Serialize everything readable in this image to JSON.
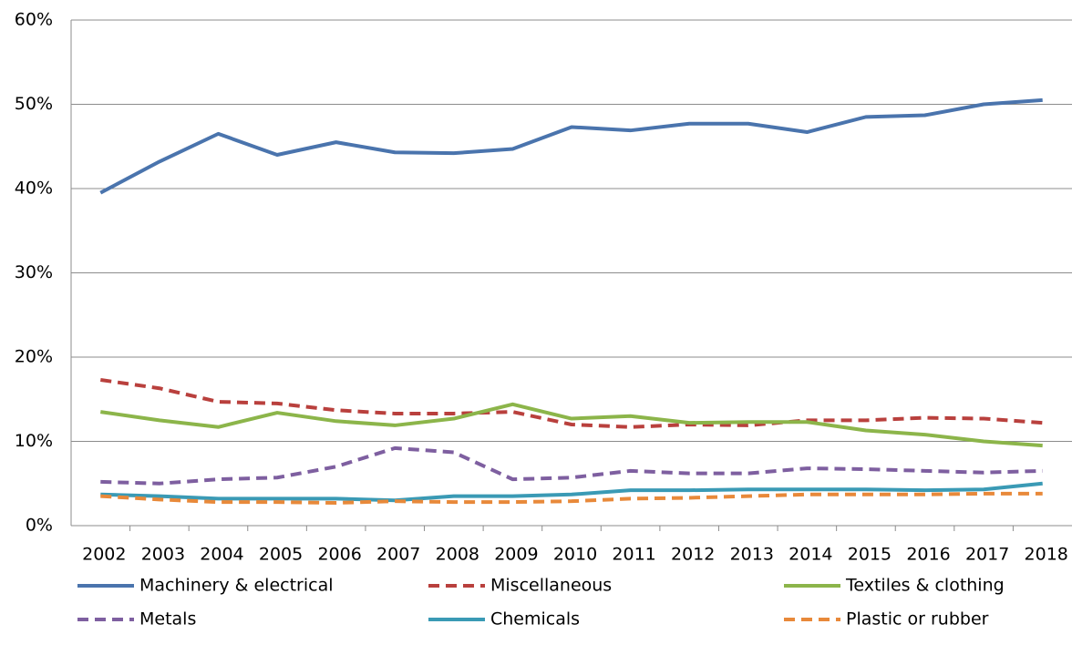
{
  "chart_data": {
    "type": "line",
    "categories": [
      "2002",
      "2003",
      "2004",
      "2005",
      "2006",
      "2007",
      "2008",
      "2009",
      "2010",
      "2011",
      "2012",
      "2013",
      "2014",
      "2015",
      "2016",
      "2017",
      "2018"
    ],
    "series": [
      {
        "name": "Machinery & electrical",
        "color": "#4a74ad",
        "dashed": false,
        "values": [
          39.5,
          43.2,
          46.5,
          44.0,
          45.5,
          44.3,
          44.2,
          44.7,
          47.3,
          46.9,
          47.7,
          47.7,
          46.7,
          48.5,
          48.7,
          50.0,
          50.5
        ]
      },
      {
        "name": "Miscellaneous",
        "color": "#b9403d",
        "dashed": true,
        "values": [
          17.3,
          16.3,
          14.7,
          14.5,
          13.7,
          13.3,
          13.3,
          13.5,
          12.0,
          11.7,
          12.0,
          11.9,
          12.5,
          12.5,
          12.8,
          12.7,
          12.2
        ]
      },
      {
        "name": "Textiles & clothing",
        "color": "#8cb54a",
        "dashed": false,
        "values": [
          13.5,
          12.5,
          11.7,
          13.4,
          12.4,
          11.9,
          12.7,
          14.4,
          12.7,
          13.0,
          12.2,
          12.3,
          12.3,
          11.3,
          10.8,
          10.0,
          9.5
        ]
      },
      {
        "name": "Metals",
        "color": "#7e5fa0",
        "dashed": true,
        "values": [
          5.2,
          5.0,
          5.5,
          5.7,
          7.0,
          9.2,
          8.7,
          5.5,
          5.7,
          6.5,
          6.2,
          6.2,
          6.8,
          6.7,
          6.5,
          6.3,
          6.5
        ]
      },
      {
        "name": "Chemicals",
        "color": "#3a9ab5",
        "dashed": false,
        "values": [
          3.7,
          3.5,
          3.2,
          3.2,
          3.2,
          3.0,
          3.5,
          3.5,
          3.7,
          4.2,
          4.2,
          4.3,
          4.3,
          4.3,
          4.2,
          4.3,
          5.0
        ]
      },
      {
        "name": "Plastic or rubber",
        "color": "#e8893a",
        "dashed": true,
        "values": [
          3.5,
          3.1,
          2.8,
          2.8,
          2.7,
          2.9,
          2.8,
          2.8,
          2.9,
          3.2,
          3.3,
          3.5,
          3.7,
          3.7,
          3.7,
          3.8,
          3.8
        ]
      }
    ],
    "ylim": [
      0,
      60
    ],
    "yticks": [
      {
        "value": 0,
        "label": "0%"
      },
      {
        "value": 10,
        "label": "10%"
      },
      {
        "value": 20,
        "label": "20%"
      },
      {
        "value": 30,
        "label": "30%"
      },
      {
        "value": 40,
        "label": "40%"
      },
      {
        "value": 50,
        "label": "50%"
      },
      {
        "value": 60,
        "label": "60%"
      }
    ],
    "grid": true,
    "legend": "bottom"
  }
}
